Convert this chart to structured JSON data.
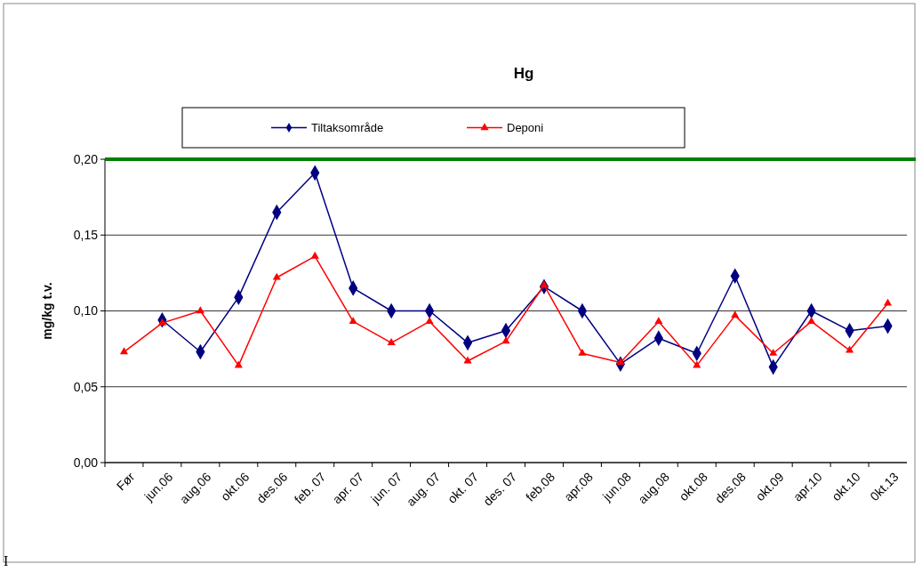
{
  "chart_data": {
    "type": "line",
    "title": "Hg",
    "ylabel": "mg/kg t.v.",
    "categories": [
      "Før",
      "jun.06",
      "aug.06",
      "okt.06",
      "des.06",
      "feb. 07",
      "apr. 07",
      "jun. 07",
      "aug. 07",
      "okt. 07",
      "des. 07",
      "feb.08",
      "apr.08",
      "jun.08",
      "aug.08",
      "okt.08",
      "des.08",
      "okt.09",
      "apr.10",
      "okt.10",
      "0kt.13"
    ],
    "series": [
      {
        "name": "Tiltaksområde",
        "color": "#000080",
        "marker": "diamond",
        "values": [
          null,
          0.094,
          0.073,
          0.109,
          0.165,
          0.191,
          0.115,
          0.1,
          0.1,
          0.079,
          0.087,
          0.116,
          0.1,
          0.065,
          0.082,
          0.072,
          0.123,
          0.063,
          0.1,
          0.087,
          0.09
        ]
      },
      {
        "name": "Deponi",
        "color": "#ff0000",
        "marker": "triangle",
        "values": [
          0.073,
          0.092,
          0.1,
          0.064,
          0.122,
          0.136,
          0.093,
          0.079,
          0.093,
          0.067,
          0.08,
          0.117,
          0.072,
          0.066,
          0.093,
          0.064,
          0.097,
          0.072,
          0.093,
          0.074,
          0.105
        ]
      }
    ],
    "ylim": [
      0,
      0.2
    ],
    "yticks": [
      {
        "value": 0,
        "label": "0,00"
      },
      {
        "value": 0.05,
        "label": "0,05"
      },
      {
        "value": 0.1,
        "label": "0,10"
      },
      {
        "value": 0.15,
        "label": "0,15"
      },
      {
        "value": 0.2,
        "label": "0,20"
      }
    ],
    "grid": "y",
    "legend": "top",
    "line_style": "solid",
    "ref_lines": [
      {
        "axis": "y",
        "value": 0.2,
        "color": "#008000"
      }
    ],
    "annotations": [
      "I"
    ]
  }
}
